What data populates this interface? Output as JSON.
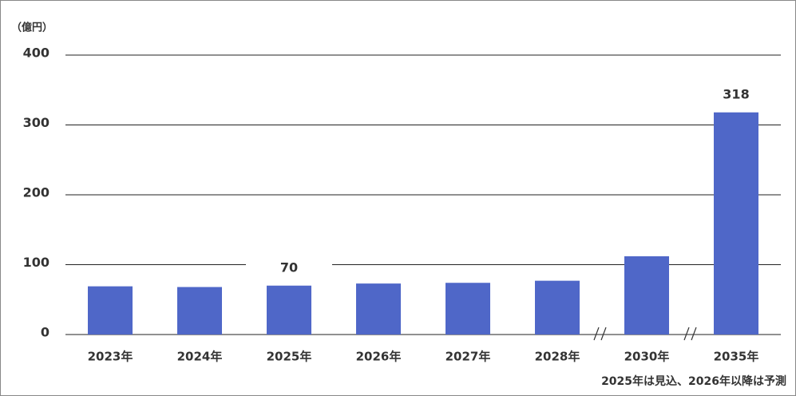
{
  "chart_data": {
    "type": "bar",
    "unit_label": "（億円）",
    "note": "2025年は見込、2026年以降は予測",
    "categories": [
      "2023年",
      "2024年",
      "2025年",
      "2026年",
      "2027年",
      "2028年",
      "2030年",
      "2035年"
    ],
    "values": [
      69,
      68,
      70,
      73,
      74,
      77,
      112,
      318
    ],
    "show_value_label": [
      false,
      false,
      true,
      false,
      false,
      false,
      false,
      true
    ],
    "color": "#4f67c8",
    "ylim": [
      0,
      400
    ],
    "yticks": [
      0,
      100,
      200,
      300,
      400
    ],
    "grid": true
  }
}
